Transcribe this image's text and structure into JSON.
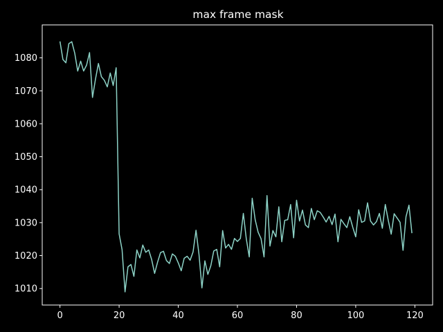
{
  "chart_data": {
    "type": "line",
    "title": "max frame mask",
    "xlabel": "",
    "ylabel": "",
    "xlim": [
      -6,
      126
    ],
    "ylim": [
      1005,
      1090
    ],
    "xticks": [
      0,
      20,
      40,
      60,
      80,
      100,
      120
    ],
    "yticks": [
      1010,
      1020,
      1030,
      1040,
      1050,
      1060,
      1070,
      1080
    ],
    "grid": false,
    "colors": {
      "background": "#000000",
      "line": "#8dd3c7",
      "axes": "#ffffff",
      "text": "#ffffff"
    },
    "series": [
      {
        "values": [
          1085,
          1079.5,
          1078.5,
          1084.3,
          1084.9,
          1081.4,
          1076,
          1079,
          1076,
          1077.8,
          1081.6,
          1068,
          1073.5,
          1078.3,
          1074.3,
          1073.2,
          1071.2,
          1075.4,
          1071.6,
          1077,
          1026.6,
          1021.8,
          1009,
          1016.6,
          1017.3,
          1013.7,
          1021.7,
          1019.3,
          1023.2,
          1021,
          1021.7,
          1018.8,
          1014.6,
          1018,
          1020.9,
          1021.3,
          1018.5,
          1017.6,
          1020.5,
          1019.8,
          1017.8,
          1015.4,
          1019.2,
          1019.8,
          1018.6,
          1021.1,
          1027.7,
          1020.4,
          1010.2,
          1018.4,
          1014.3,
          1016.9,
          1021.4,
          1021.9,
          1016.6,
          1027.6,
          1022.3,
          1023.4,
          1021.9,
          1025.2,
          1024.3,
          1025.2,
          1032.8,
          1025.1,
          1019.6,
          1037.4,
          1030.9,
          1027.1,
          1025.1,
          1019.6,
          1038.2,
          1022.9,
          1027.6,
          1025.7,
          1034.8,
          1024.2,
          1030.7,
          1030.9,
          1035.5,
          1025.4,
          1036.8,
          1030.5,
          1033.8,
          1029.3,
          1028.5,
          1034.3,
          1030.9,
          1033.6,
          1033.1,
          1031.7,
          1030.2,
          1031.9,
          1029.4,
          1032.6,
          1024.2,
          1031,
          1029.7,
          1028.5,
          1031.8,
          1028.6,
          1025.7,
          1033.9,
          1030.1,
          1030.5,
          1036,
          1030.5,
          1029.3,
          1030.3,
          1032.8,
          1028.3,
          1035.5,
          1030.7,
          1026.5,
          1032.7,
          1031.4,
          1030.1,
          1021.6,
          1031.8,
          1035.3,
          1026.8
        ]
      }
    ]
  }
}
